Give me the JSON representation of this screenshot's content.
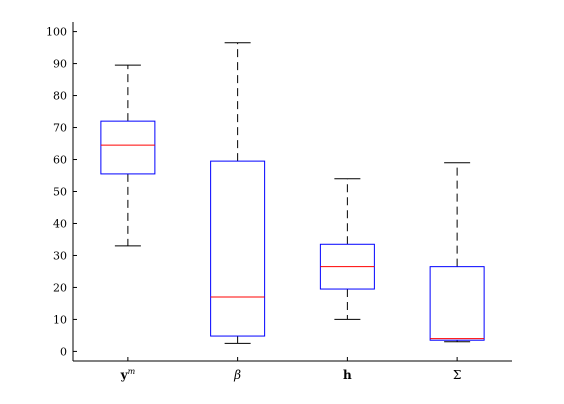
{
  "chart_data": {
    "type": "boxplot",
    "categories": [
      {
        "label": "y",
        "superscript": "m",
        "style": "bold"
      },
      {
        "label": "β",
        "superscript": "",
        "style": "italic"
      },
      {
        "label": "h",
        "superscript": "",
        "style": "bold"
      },
      {
        "label": "Σ",
        "superscript": "",
        "style": "normal"
      }
    ],
    "boxes": [
      {
        "whisker_low": 33,
        "q1": 55.5,
        "median": 64.5,
        "q3": 72,
        "whisker_high": 89.5
      },
      {
        "whisker_low": 2.5,
        "q1": 4.8,
        "median": 17,
        "q3": 59.5,
        "whisker_high": 96.5
      },
      {
        "whisker_low": 10,
        "q1": 19.5,
        "median": 26.5,
        "q3": 33.5,
        "whisker_high": 54
      },
      {
        "whisker_low": 3,
        "q1": 3.5,
        "median": 4,
        "q3": 26.5,
        "whisker_high": 59
      }
    ],
    "ylim": [
      -3,
      103
    ],
    "yticks": [
      0,
      10,
      20,
      30,
      40,
      50,
      60,
      70,
      80,
      90,
      100
    ],
    "title": "",
    "xlabel": "",
    "ylabel": "",
    "grid": false,
    "colors": {
      "box": "#0000ff",
      "median": "#ff0000",
      "whisker": "#000000",
      "axis": "#000000"
    }
  }
}
